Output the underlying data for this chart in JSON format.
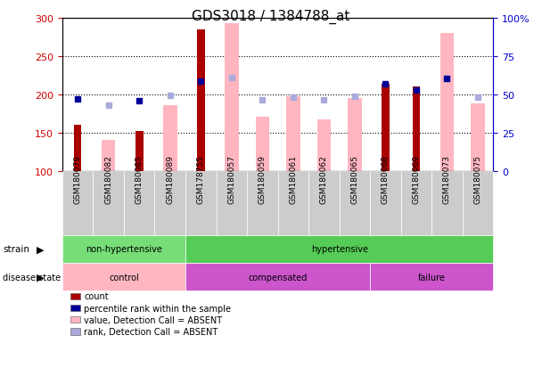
{
  "title": "GDS3018 / 1384788_at",
  "samples": [
    "GSM180079",
    "GSM180082",
    "GSM180085",
    "GSM180089",
    "GSM178755",
    "GSM180057",
    "GSM180059",
    "GSM180061",
    "GSM180062",
    "GSM180065",
    "GSM180068",
    "GSM180069",
    "GSM180073",
    "GSM180075"
  ],
  "count_values": [
    160,
    null,
    152,
    null,
    284,
    null,
    null,
    null,
    null,
    null,
    213,
    210,
    null,
    null
  ],
  "percentile_rank": [
    194,
    null,
    191,
    null,
    217,
    null,
    null,
    null,
    null,
    null,
    213,
    205,
    220,
    null
  ],
  "value_absent": [
    null,
    140,
    null,
    185,
    null,
    293,
    171,
    197,
    167,
    195,
    null,
    null,
    280,
    188
  ],
  "rank_absent": [
    null,
    185,
    null,
    198,
    null,
    222,
    193,
    196,
    192,
    197,
    null,
    null,
    220,
    196
  ],
  "ylim_left": [
    100,
    300
  ],
  "ylim_right": [
    0,
    100
  ],
  "yticks_left": [
    100,
    150,
    200,
    250,
    300
  ],
  "yticks_right": [
    0,
    25,
    50,
    75,
    100
  ],
  "ytick_labels_right": [
    "0",
    "25",
    "50",
    "75",
    "100%"
  ],
  "strain_groups": [
    {
      "label": "non-hypertensive",
      "start": 0,
      "end": 4,
      "color": "#77DD77"
    },
    {
      "label": "hypertensive",
      "start": 4,
      "end": 14,
      "color": "#55CC55"
    }
  ],
  "disease_groups": [
    {
      "label": "control",
      "start": 0,
      "end": 4,
      "color": "#FFB6C1"
    },
    {
      "label": "compensated",
      "start": 4,
      "end": 10,
      "color": "#CC55CC"
    },
    {
      "label": "failure",
      "start": 10,
      "end": 14,
      "color": "#CC55CC"
    }
  ],
  "count_color": "#AA0000",
  "percentile_color": "#000099",
  "value_absent_color": "#FFB6C1",
  "rank_absent_color": "#AAAADD",
  "background_color": "#ffffff",
  "plot_bg_color": "#ffffff",
  "axis_color_left": "#CC0000",
  "axis_color_right": "#0000CC",
  "xtick_box_color": "#CCCCCC",
  "grid_dotted_values": [
    150,
    200,
    250
  ]
}
